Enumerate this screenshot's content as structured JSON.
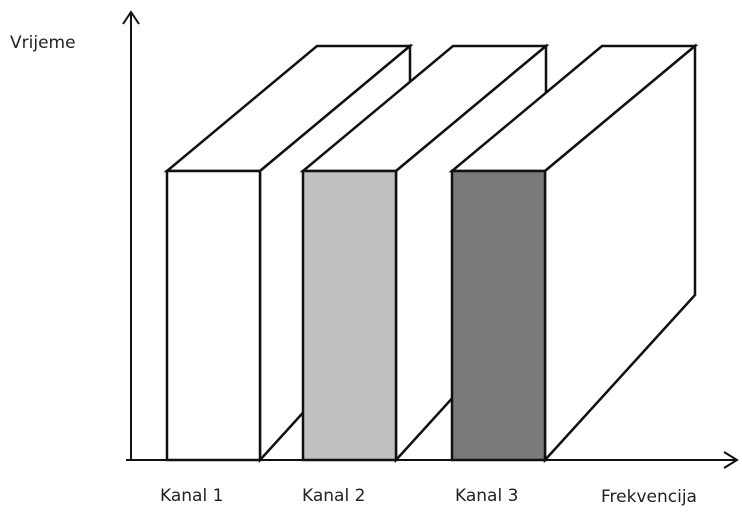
{
  "axes": {
    "y_label": "Vrijeme",
    "x_label": "Frekvencija"
  },
  "channels": [
    {
      "label": "Kanal 1",
      "front_color": "#ffffff"
    },
    {
      "label": "Kanal 2",
      "front_color": "#c0c0c0"
    },
    {
      "label": "Kanal 3",
      "front_color": "#7a7a7a"
    }
  ],
  "colors": {
    "stroke": "#111111",
    "side_face": "#ffffff"
  }
}
